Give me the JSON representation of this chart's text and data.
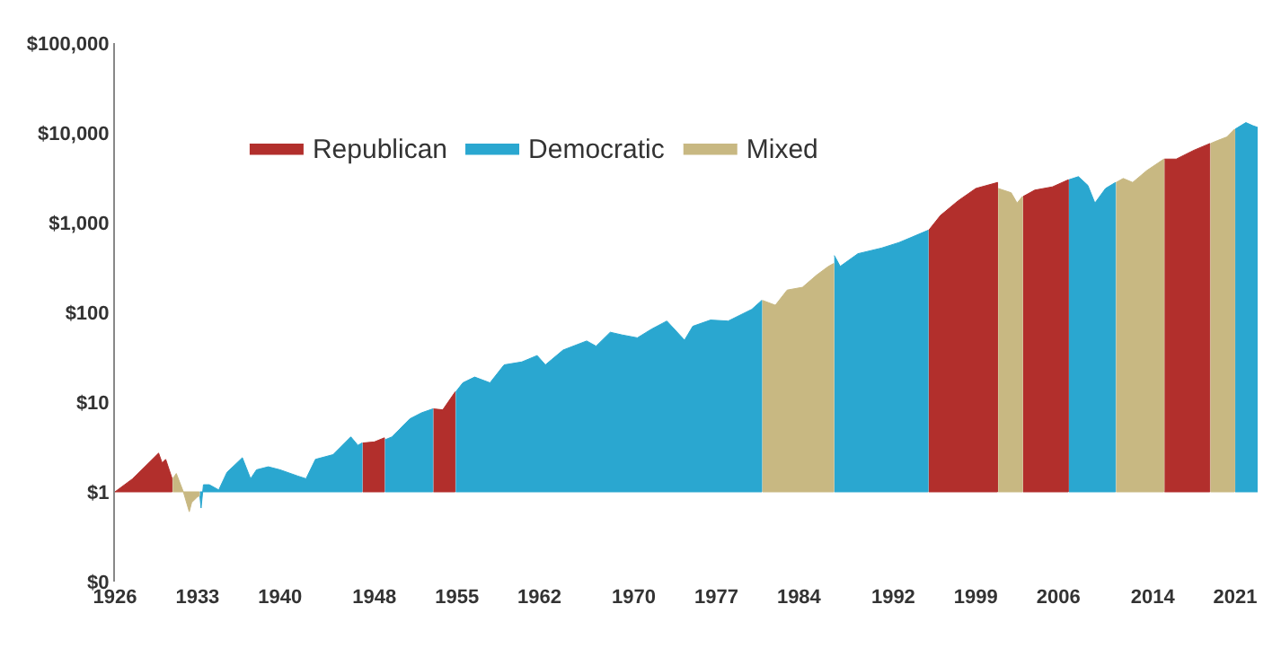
{
  "chart_data": {
    "type": "area",
    "log": "y",
    "grid": false,
    "legend": "top left",
    "xlim": [
      1926,
      2022.9
    ],
    "xticks": [
      1926,
      1933,
      1940,
      1948,
      1955,
      1962,
      1970,
      1977,
      1984,
      1992,
      1999,
      2006,
      2014,
      2021
    ],
    "ylim": [
      0.1,
      100000
    ],
    "yticks": [
      {
        "value": 0.1,
        "label": "$0"
      },
      {
        "value": 1,
        "label": "$1"
      },
      {
        "value": 10,
        "label": "$10"
      },
      {
        "value": 100,
        "label": "$100"
      },
      {
        "value": 1000,
        "label": "$1,000"
      },
      {
        "value": 10000,
        "label": "$10,000"
      },
      {
        "value": 100000,
        "label": "$100,000"
      }
    ],
    "x": [
      1926,
      1927.5,
      1929.7,
      1930,
      1930.3,
      1930.85,
      1930.9,
      1931.2,
      1931.8,
      1932.3,
      1932.5,
      1933,
      1933.15,
      1933.2,
      1933.3,
      1933.5,
      1934,
      1934.8,
      1935.5,
      1936.8,
      1937.5,
      1938,
      1939,
      1940,
      1941.5,
      1942.2,
      1943,
      1944.5,
      1946,
      1946.6,
      1946.95,
      1947,
      1948,
      1948.85,
      1948.9,
      1949.5,
      1951,
      1952,
      1952.95,
      1953,
      1953.8,
      1954.85,
      1954.9,
      1955.5,
      1956.5,
      1957.8,
      1959,
      1960.5,
      1961.8,
      1962.5,
      1964,
      1966,
      1966.8,
      1968,
      1969,
      1970.3,
      1971.5,
      1972.8,
      1974.3,
      1975,
      1976.5,
      1978,
      1980,
      1980.85,
      1980.9,
      1982,
      1983,
      1984.3,
      1985.5,
      1986.5,
      1986.95,
      1987,
      1987.5,
      1989,
      1991,
      1992.5,
      1994.95,
      1995,
      1996,
      1997.5,
      1999,
      2000.85,
      2000.9,
      2002,
      2002.5,
      2002.95,
      2003,
      2004,
      2005.5,
      2006.85,
      2006.9,
      2007.7,
      2008.5,
      2009.1,
      2010,
      2010.85,
      2010.9,
      2011.5,
      2012.3,
      2013.5,
      2014.95,
      2015,
      2016,
      2017.5,
      2018.85,
      2018.9,
      2019.5,
      2020.3,
      2020.95,
      2021,
      2021.9,
      2022.5,
      2022.9
    ],
    "series": [
      {
        "name": "Republican",
        "color": "#b22f2c",
        "values": [
          1,
          1.4,
          2.7,
          2.1,
          2.3,
          1.4,
          null,
          null,
          null,
          null,
          null,
          null,
          null,
          null,
          null,
          null,
          null,
          null,
          null,
          null,
          null,
          null,
          null,
          null,
          null,
          null,
          null,
          null,
          null,
          null,
          null,
          3.5,
          3.6,
          4.0,
          null,
          null,
          null,
          null,
          null,
          8.4,
          8.2,
          13,
          null,
          null,
          null,
          null,
          null,
          null,
          null,
          null,
          null,
          null,
          null,
          null,
          null,
          null,
          null,
          null,
          null,
          null,
          null,
          null,
          null,
          null,
          null,
          null,
          null,
          null,
          null,
          null,
          null,
          null,
          null,
          null,
          null,
          null,
          null,
          820,
          1200,
          1750,
          2400,
          2800,
          null,
          null,
          null,
          null,
          1950,
          2300,
          2500,
          3000,
          null,
          null,
          null,
          null,
          null,
          null,
          null,
          null,
          null,
          null,
          null,
          5100,
          5100,
          6400,
          7600,
          null,
          null,
          null,
          null,
          null,
          null,
          null,
          null
        ]
      },
      {
        "name": "Democratic",
        "color": "#2aa7d0",
        "values": [
          null,
          null,
          null,
          null,
          null,
          null,
          null,
          null,
          null,
          null,
          null,
          null,
          null,
          0.9,
          0.66,
          1.2,
          1.2,
          1.05,
          1.65,
          2.4,
          1.4,
          1.76,
          1.9,
          1.76,
          1.5,
          1.4,
          2.3,
          2.6,
          4.1,
          3.3,
          3.5,
          null,
          null,
          null,
          3.8,
          4.1,
          6.5,
          7.6,
          8.4,
          null,
          null,
          null,
          13,
          16.4,
          19,
          16.4,
          26,
          28,
          33,
          26,
          38,
          48,
          42,
          60,
          56,
          52,
          65,
          80,
          49,
          70,
          82,
          80,
          108,
          136,
          null,
          null,
          null,
          null,
          null,
          null,
          null,
          430,
          325,
          450,
          520,
          600,
          820,
          null,
          null,
          null,
          null,
          null,
          null,
          null,
          null,
          null,
          null,
          null,
          null,
          null,
          3000,
          3250,
          2600,
          1650,
          2400,
          2800,
          null,
          null,
          null,
          null,
          null,
          null,
          null,
          null,
          null,
          null,
          null,
          null,
          null,
          11000,
          13000,
          12000,
          11500
        ]
      },
      {
        "name": "Mixed",
        "color": "#c8b882",
        "values": [
          null,
          null,
          null,
          null,
          null,
          null,
          1.4,
          1.6,
          1.0,
          0.6,
          0.76,
          0.88,
          0.9,
          null,
          null,
          null,
          null,
          null,
          null,
          null,
          null,
          null,
          null,
          null,
          null,
          null,
          null,
          null,
          null,
          null,
          null,
          null,
          null,
          null,
          null,
          null,
          null,
          null,
          null,
          null,
          null,
          null,
          null,
          null,
          null,
          null,
          null,
          null,
          null,
          null,
          null,
          null,
          null,
          null,
          null,
          null,
          null,
          null,
          null,
          null,
          null,
          null,
          null,
          null,
          136,
          120,
          177,
          190,
          260,
          325,
          350,
          null,
          null,
          null,
          null,
          null,
          null,
          null,
          null,
          null,
          null,
          null,
          2400,
          2150,
          1650,
          1950,
          null,
          null,
          null,
          null,
          null,
          null,
          null,
          null,
          null,
          null,
          2800,
          3100,
          2800,
          3800,
          5100,
          null,
          null,
          null,
          null,
          7600,
          8200,
          9000,
          11000,
          null,
          null,
          null,
          null
        ]
      }
    ]
  }
}
